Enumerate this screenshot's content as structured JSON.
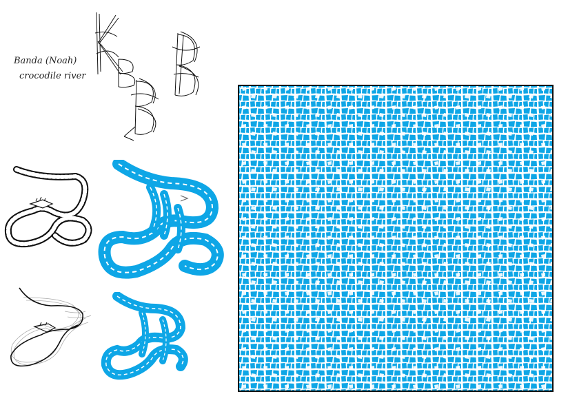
{
  "note": {
    "line1": "Banda (Noah)",
    "line2": "crocodile river"
  },
  "colors": {
    "mosaic_fill": "#0ea6e6",
    "grout": "#ffffff",
    "ink": "#111111",
    "pencil": "#888888"
  }
}
